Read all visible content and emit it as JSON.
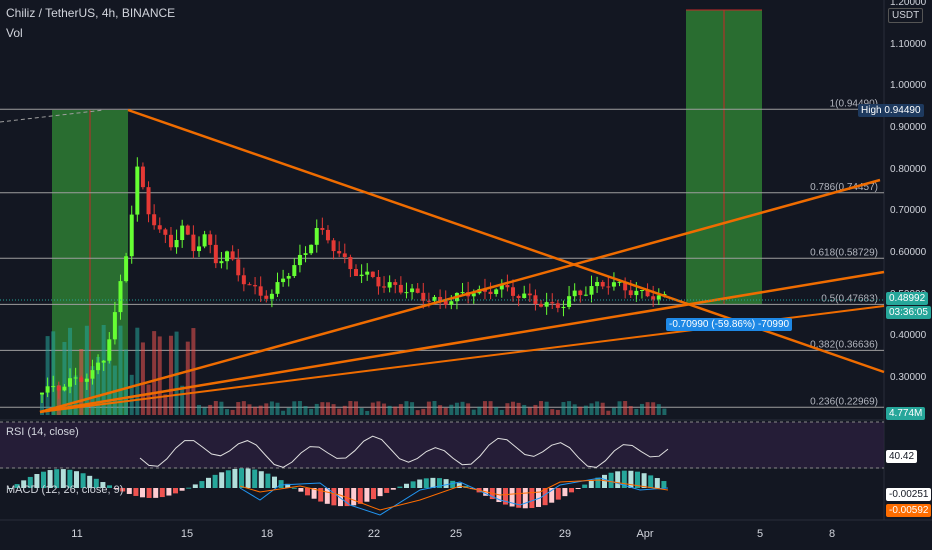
{
  "header": {
    "symbol": "Chiliz / TetherUS, 4h, BINANCE",
    "volume_label": "Vol"
  },
  "rsi": {
    "label": "RSI (14, close)",
    "value": "40.42"
  },
  "macd": {
    "label": "MACD (12, 26, close, 9)",
    "value1": "-0.00251",
    "value2": "-0.00592"
  },
  "price_axis": {
    "currency": "USDT",
    "ticks": [
      "1.20000",
      "1.10000",
      "1.00000",
      "0.90000",
      "0.80000",
      "0.70000",
      "0.60000",
      "0.50000",
      "0.40000",
      "0.30000"
    ],
    "high_label": "High",
    "high_value": "0.94490",
    "current_value": "0.48992",
    "countdown": "03:36:05",
    "volume_value": "4.774M"
  },
  "fib_levels": [
    {
      "label": "1(0.94490)",
      "value": 0.9449
    },
    {
      "label": "0.786(0.74457)",
      "value": 0.74457
    },
    {
      "label": "0.618(0.58729)",
      "value": 0.58729
    },
    {
      "label": "0.5(0.47683)",
      "value": 0.47683
    },
    {
      "label": "0.382(0.36636)",
      "value": 0.36636
    },
    {
      "label": "0.236(0.22969)",
      "value": 0.22969
    }
  ],
  "measure_tooltip": "-0.70990 (-59.86%) -70990",
  "x_axis": [
    "11",
    "15",
    "18",
    "22",
    "25",
    "29",
    "Apr",
    "5",
    "8"
  ],
  "chart_data": {
    "type": "candlestick",
    "ylim": [
      0.23,
      1.21
    ],
    "close_series_hint": [
      0.27,
      0.28,
      0.29,
      0.3,
      0.31,
      0.35,
      0.45,
      0.6,
      0.8,
      0.7,
      0.65,
      0.62,
      0.66,
      0.61,
      0.64,
      0.58,
      0.6,
      0.55,
      0.52,
      0.5,
      0.5,
      0.54,
      0.57,
      0.6,
      0.66,
      0.63,
      0.6,
      0.56,
      0.55,
      0.54,
      0.52,
      0.52,
      0.51,
      0.5,
      0.49,
      0.48,
      0.49,
      0.5,
      0.51,
      0.5,
      0.52,
      0.51,
      0.5,
      0.49,
      0.48,
      0.47,
      0.48,
      0.5,
      0.51,
      0.52,
      0.53,
      0.52,
      0.51,
      0.5,
      0.5,
      0.49
    ]
  }
}
